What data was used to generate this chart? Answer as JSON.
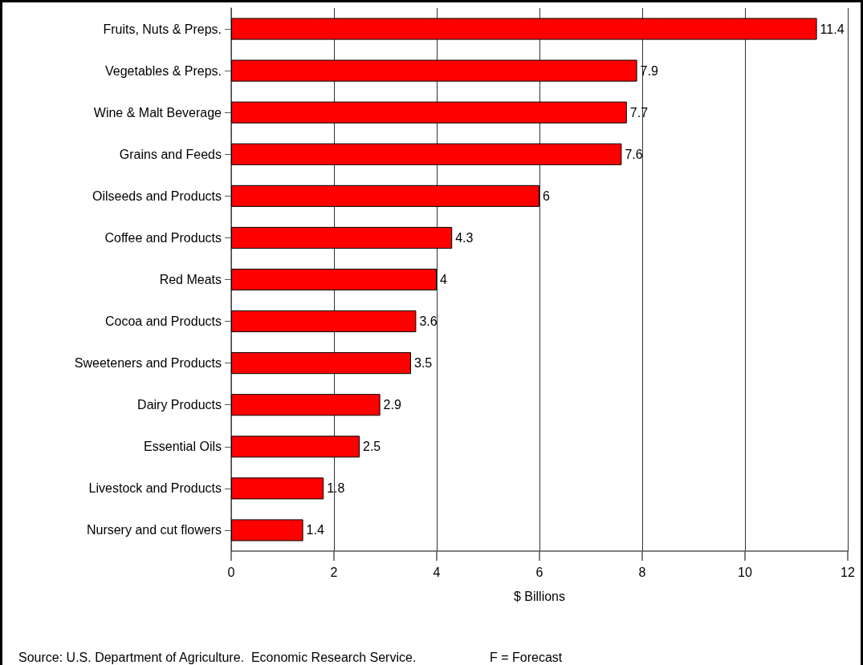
{
  "chart_data": {
    "type": "bar",
    "orientation": "horizontal",
    "xlabel": "$ Billions",
    "categories": [
      "Fruits, Nuts & Preps.",
      "Vegetables & Preps.",
      "Wine & Malt Beverage",
      "Grains and Feeds",
      "Oilseeds and Products",
      "Coffee and Products",
      "Red Meats",
      "Cocoa and Products",
      "Sweeteners and Products",
      "Dairy Products",
      "Essential Oils",
      "Livestock and Products",
      "Nursery and cut flowers"
    ],
    "values": [
      11.4,
      7.9,
      7.7,
      7.6,
      6,
      4.3,
      4,
      3.6,
      3.5,
      2.9,
      2.5,
      1.8,
      1.4
    ],
    "color": "#ff0000",
    "xlim": [
      0,
      12
    ],
    "xticks": [
      0,
      2,
      4,
      6,
      8,
      10,
      12
    ],
    "grid": "x",
    "data_labels": true,
    "annotations": [
      "Source: U.S. Department of Agriculture.  Economic Research Service.",
      "F = Forecast"
    ]
  }
}
